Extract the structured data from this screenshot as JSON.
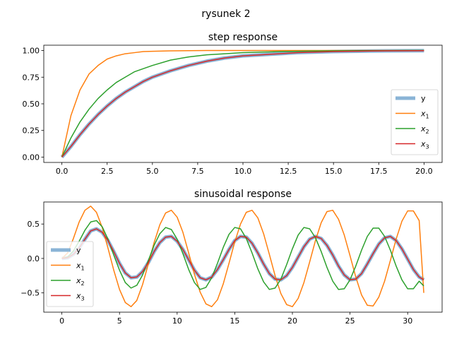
{
  "figure": {
    "suptitle": "rysunek 2"
  },
  "chart_data": [
    {
      "type": "line",
      "title": "step response",
      "xlabel": "",
      "ylabel": "",
      "xlim": [
        -1.0,
        21.0
      ],
      "ylim": [
        -0.05,
        1.05
      ],
      "xticks": [
        0.0,
        2.5,
        5.0,
        7.5,
        10.0,
        12.5,
        15.0,
        17.5,
        20.0
      ],
      "xtick_labels": [
        "0.0",
        "2.5",
        "5.0",
        "7.5",
        "10.0",
        "12.5",
        "15.0",
        "17.5",
        "20.0"
      ],
      "yticks": [
        0.0,
        0.25,
        0.5,
        0.75,
        1.0
      ],
      "ytick_labels": [
        "0.00",
        "0.25",
        "0.50",
        "0.75",
        "1.00"
      ],
      "grid": false,
      "legend_position": "center-right",
      "x": [
        0,
        0.5,
        1,
        1.5,
        2,
        2.5,
        3,
        3.5,
        4,
        4.5,
        5,
        6,
        7,
        8,
        9,
        10,
        11,
        12,
        13,
        14,
        15,
        16,
        17,
        18,
        19,
        20
      ],
      "series": [
        {
          "name": "y",
          "label_main": "y",
          "label_sub": "",
          "color": "#8ab4d6",
          "width": 5,
          "values": [
            0.0,
            0.1,
            0.21,
            0.31,
            0.4,
            0.48,
            0.55,
            0.61,
            0.66,
            0.71,
            0.75,
            0.81,
            0.86,
            0.9,
            0.93,
            0.95,
            0.96,
            0.97,
            0.98,
            0.985,
            0.99,
            0.993,
            0.995,
            0.997,
            0.998,
            0.999
          ]
        },
        {
          "name": "x1",
          "label_main": "x",
          "label_sub": "1",
          "color": "#ff7f0e",
          "width": 1.5,
          "values": [
            0.0,
            0.39,
            0.63,
            0.78,
            0.86,
            0.92,
            0.95,
            0.97,
            0.98,
            0.99,
            0.993,
            0.997,
            0.999,
            1.0,
            1.0,
            1.0,
            1.0,
            1.0,
            1.0,
            1.0,
            1.0,
            1.0,
            1.0,
            1.0,
            1.0,
            1.0
          ]
        },
        {
          "name": "x2",
          "label_main": "x",
          "label_sub": "2",
          "color": "#2ca02c",
          "width": 1.5,
          "values": [
            0.0,
            0.18,
            0.33,
            0.45,
            0.55,
            0.63,
            0.7,
            0.75,
            0.8,
            0.83,
            0.86,
            0.91,
            0.94,
            0.96,
            0.97,
            0.98,
            0.985,
            0.99,
            0.993,
            0.995,
            0.997,
            0.998,
            0.999,
            0.999,
            1.0,
            1.0
          ]
        },
        {
          "name": "x3",
          "label_main": "x",
          "label_sub": "3",
          "color": "#d62728",
          "width": 1.5,
          "values": [
            0.0,
            0.1,
            0.21,
            0.31,
            0.4,
            0.48,
            0.55,
            0.61,
            0.66,
            0.71,
            0.75,
            0.81,
            0.86,
            0.9,
            0.93,
            0.95,
            0.96,
            0.97,
            0.98,
            0.985,
            0.99,
            0.993,
            0.995,
            0.997,
            0.998,
            0.999
          ]
        }
      ]
    },
    {
      "type": "line",
      "title": "sinusoidal response",
      "xlabel": "",
      "ylabel": "",
      "xlim": [
        -1.57,
        32.99
      ],
      "ylim": [
        -0.78,
        0.82
      ],
      "xticks": [
        0,
        5,
        10,
        15,
        20,
        25,
        30
      ],
      "xtick_labels": [
        "0",
        "5",
        "10",
        "15",
        "20",
        "25",
        "30"
      ],
      "yticks": [
        -0.5,
        0.0,
        0.5
      ],
      "ytick_labels": [
        "−0.5",
        "0.0",
        "0.5"
      ],
      "grid": false,
      "legend_position": "lower-left",
      "x": [
        0.0,
        0.5,
        1.0,
        1.5,
        2.0,
        2.5,
        3.0,
        3.5,
        4.0,
        4.5,
        5.0,
        5.5,
        6.0,
        6.5,
        7.0,
        7.5,
        8.0,
        8.5,
        9.0,
        9.5,
        10.0,
        10.5,
        11.0,
        11.5,
        12.0,
        12.5,
        13.0,
        13.5,
        14.0,
        14.5,
        15.0,
        15.5,
        16.0,
        16.5,
        17.0,
        17.5,
        18.0,
        18.5,
        19.0,
        19.5,
        20.0,
        20.5,
        21.0,
        21.5,
        22.0,
        22.5,
        23.0,
        23.5,
        24.0,
        24.5,
        25.0,
        25.5,
        26.0,
        26.5,
        27.0,
        27.5,
        28.0,
        28.5,
        29.0,
        29.5,
        30.0,
        30.5,
        31.0,
        31.4
      ],
      "series": [
        {
          "name": "y",
          "label_main": "y",
          "label_sub": "",
          "color": "#8ab4d6",
          "width": 5,
          "values": [
            0.0,
            0.01,
            0.06,
            0.15,
            0.28,
            0.4,
            0.43,
            0.38,
            0.26,
            0.1,
            -0.07,
            -0.21,
            -0.28,
            -0.27,
            -0.19,
            -0.06,
            0.1,
            0.23,
            0.31,
            0.32,
            0.25,
            0.13,
            -0.02,
            -0.17,
            -0.28,
            -0.31,
            -0.27,
            -0.16,
            -0.02,
            0.13,
            0.26,
            0.32,
            0.31,
            0.22,
            0.08,
            -0.08,
            -0.22,
            -0.3,
            -0.31,
            -0.25,
            -0.13,
            0.02,
            0.17,
            0.28,
            0.32,
            0.29,
            0.19,
            0.05,
            -0.11,
            -0.24,
            -0.31,
            -0.3,
            -0.22,
            -0.08,
            0.07,
            0.21,
            0.3,
            0.32,
            0.26,
            0.14,
            -0.01,
            -0.16,
            -0.27,
            -0.31
          ]
        },
        {
          "name": "x1",
          "label_main": "x",
          "label_sub": "1",
          "color": "#ff7f0e",
          "width": 1.5,
          "values": [
            0.0,
            0.08,
            0.29,
            0.53,
            0.7,
            0.76,
            0.67,
            0.45,
            0.15,
            -0.17,
            -0.45,
            -0.64,
            -0.7,
            -0.61,
            -0.38,
            -0.08,
            0.23,
            0.49,
            0.66,
            0.7,
            0.6,
            0.38,
            0.08,
            -0.23,
            -0.49,
            -0.66,
            -0.7,
            -0.6,
            -0.37,
            -0.07,
            0.24,
            0.5,
            0.67,
            0.7,
            0.59,
            0.36,
            0.06,
            -0.25,
            -0.51,
            -0.67,
            -0.7,
            -0.58,
            -0.35,
            -0.05,
            0.26,
            0.52,
            0.68,
            0.7,
            0.57,
            0.34,
            0.04,
            -0.27,
            -0.53,
            -0.68,
            -0.69,
            -0.56,
            -0.33,
            -0.03,
            0.28,
            0.54,
            0.69,
            0.69,
            0.55,
            -0.5
          ]
        },
        {
          "name": "x2",
          "label_main": "x",
          "label_sub": "2",
          "color": "#2ca02c",
          "width": 1.5,
          "values": [
            0.0,
            0.02,
            0.11,
            0.25,
            0.41,
            0.53,
            0.55,
            0.46,
            0.28,
            0.05,
            -0.17,
            -0.35,
            -0.43,
            -0.39,
            -0.24,
            -0.03,
            0.19,
            0.36,
            0.45,
            0.42,
            0.28,
            0.07,
            -0.16,
            -0.35,
            -0.45,
            -0.42,
            -0.28,
            -0.07,
            0.16,
            0.35,
            0.45,
            0.43,
            0.29,
            0.08,
            -0.15,
            -0.34,
            -0.45,
            -0.43,
            -0.3,
            -0.09,
            0.14,
            0.34,
            0.45,
            0.43,
            0.3,
            0.1,
            -0.13,
            -0.33,
            -0.45,
            -0.44,
            -0.31,
            -0.11,
            0.12,
            0.32,
            0.44,
            0.44,
            0.32,
            0.12,
            -0.11,
            -0.31,
            -0.44,
            -0.44,
            -0.33,
            -0.4
          ]
        },
        {
          "name": "x3",
          "label_main": "x",
          "label_sub": "3",
          "color": "#d62728",
          "width": 1.5,
          "values": [
            0.0,
            0.01,
            0.06,
            0.15,
            0.28,
            0.4,
            0.43,
            0.38,
            0.26,
            0.1,
            -0.07,
            -0.21,
            -0.28,
            -0.27,
            -0.19,
            -0.06,
            0.1,
            0.23,
            0.31,
            0.32,
            0.25,
            0.13,
            -0.02,
            -0.17,
            -0.28,
            -0.31,
            -0.27,
            -0.16,
            -0.02,
            0.13,
            0.26,
            0.32,
            0.31,
            0.22,
            0.08,
            -0.08,
            -0.22,
            -0.3,
            -0.31,
            -0.25,
            -0.13,
            0.02,
            0.17,
            0.28,
            0.32,
            0.29,
            0.19,
            0.05,
            -0.11,
            -0.24,
            -0.31,
            -0.3,
            -0.22,
            -0.08,
            0.07,
            0.21,
            0.3,
            0.32,
            0.26,
            0.14,
            -0.01,
            -0.16,
            -0.27,
            -0.31
          ]
        }
      ]
    }
  ]
}
